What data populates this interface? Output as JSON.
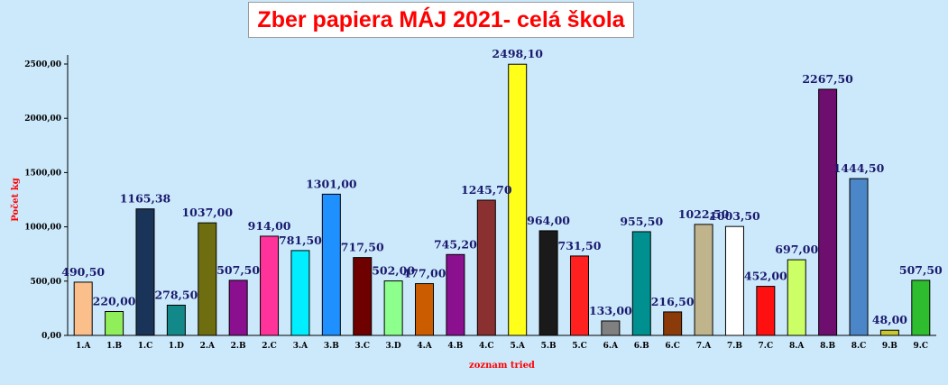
{
  "chart_data": {
    "type": "bar",
    "title": "Zber papiera MÁJ 2021- celá škola",
    "xlabel": "zoznam tried",
    "ylabel": "Počet kg",
    "ylim": [
      0,
      2500
    ],
    "yticks": [
      "0,00",
      "500,00",
      "1000,00",
      "1500,00",
      "2000,00",
      "2500,00"
    ],
    "grid": false,
    "legend": "none",
    "categories": [
      "1.A",
      "1.B",
      "1.C",
      "1.D",
      "2.A",
      "2.B",
      "2.C",
      "3.A",
      "3.B",
      "3.C",
      "3.D",
      "4.A",
      "4.B",
      "4.C",
      "5.A",
      "5.B",
      "5.C",
      "6.A",
      "6.B",
      "6.C",
      "7.A",
      "7.B",
      "7.C",
      "8.A",
      "8.B",
      "8.C",
      "9.B",
      "9.C"
    ],
    "values": [
      490.5,
      220.0,
      1165.38,
      278.5,
      1037.0,
      507.5,
      914.0,
      781.5,
      1301.0,
      717.5,
      502.0,
      477.0,
      745.2,
      1245.7,
      2498.1,
      964.0,
      731.5,
      133.0,
      955.5,
      216.5,
      1022.5,
      1003.5,
      452.0,
      697.0,
      2267.5,
      1444.5,
      48.0,
      507.5
    ],
    "value_labels": [
      "490,50",
      "220,00",
      "1165,38",
      "278,50",
      "1037,00",
      "507,50",
      "914,00",
      "781,50",
      "1301,00",
      "717,50",
      "502,00",
      "477,00",
      "745,20",
      "1245,70",
      "2498,10",
      "964,00",
      "731,50",
      "133,00",
      "955,50",
      "216,50",
      "1022,50",
      "1003,50",
      "452,00",
      "697,00",
      "2267,50",
      "1444,50",
      "48,00",
      "507,50"
    ],
    "colors": [
      "#fbbf8c",
      "#90ee5a",
      "#1a3358",
      "#138888",
      "#6e6e10",
      "#8a1090",
      "#ff3399",
      "#00eeff",
      "#1e90ff",
      "#6e0000",
      "#8cff8c",
      "#cc5c00",
      "#8a1090",
      "#8b3030",
      "#ffff1a",
      "#1a1a1a",
      "#ff2020",
      "#808080",
      "#009090",
      "#8b3a0a",
      "#c0b48c",
      "#ffffff",
      "#ff1010",
      "#ccff66",
      "#6e0e6e",
      "#4a86c8",
      "#c8c830",
      "#2ebd2e"
    ]
  }
}
